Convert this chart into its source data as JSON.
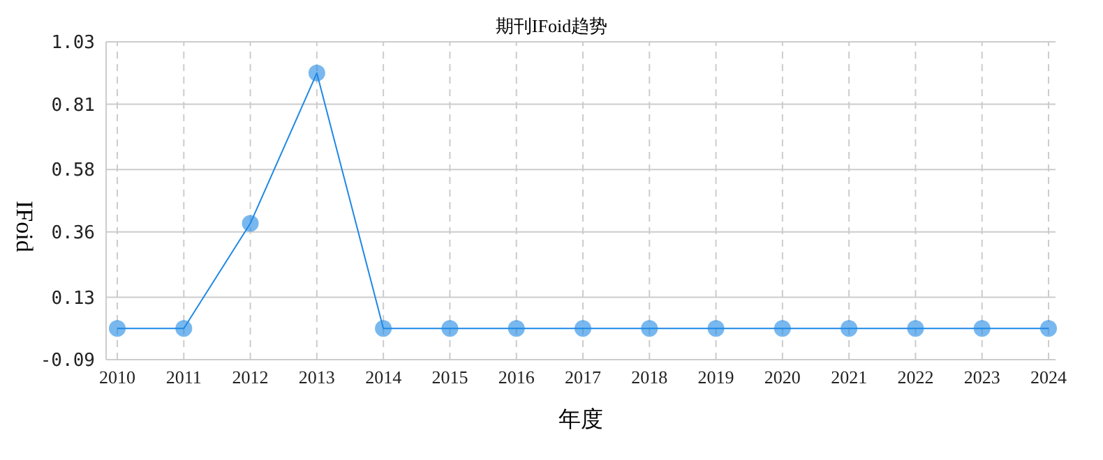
{
  "chart_data": {
    "type": "line",
    "title": "期刊IFoid趋势",
    "xlabel": "年度",
    "ylabel": "IFoid",
    "categories": [
      "2010",
      "2011",
      "2012",
      "2013",
      "2014",
      "2015",
      "2016",
      "2017",
      "2018",
      "2019",
      "2020",
      "2021",
      "2022",
      "2023",
      "2024"
    ],
    "series": [
      {
        "color": "#1e88e5",
        "values": [
          0.02,
          0.02,
          0.39,
          0.92,
          0.02,
          0.02,
          0.02,
          0.02,
          0.02,
          0.02,
          0.02,
          0.02,
          0.02,
          0.02,
          0.02
        ]
      }
    ],
    "ylim": [
      -0.09,
      1.03
    ],
    "yticks": [
      -0.09,
      0.13,
      0.36,
      0.58,
      0.81,
      1.03
    ],
    "grid": true,
    "marker": "circle",
    "line_style": "solid"
  }
}
